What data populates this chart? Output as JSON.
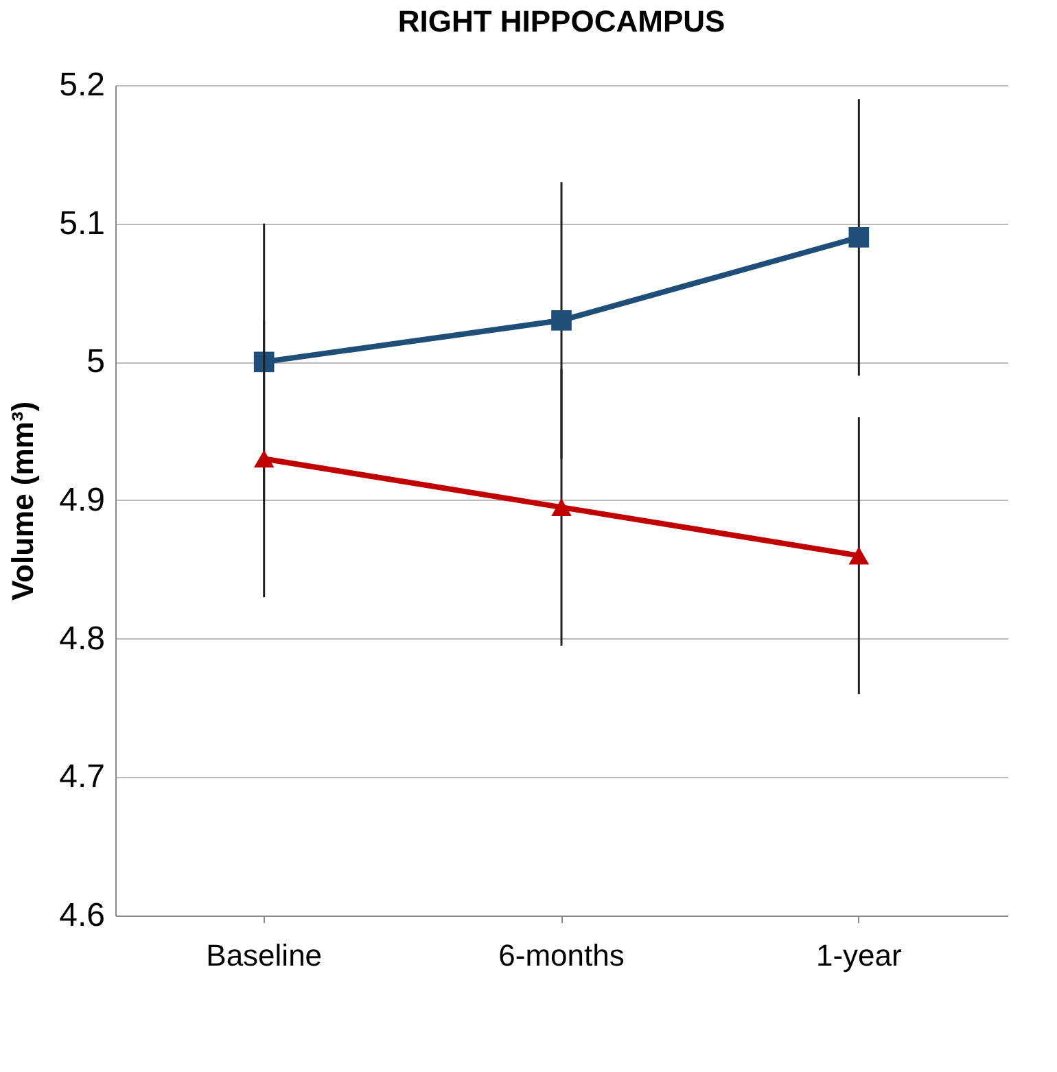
{
  "chart_data": {
    "type": "line",
    "title": "RIGHT HIPPOCAMPUS",
    "ylabel": "Volume (mm³)",
    "categories": [
      "Baseline",
      "6-months",
      "1-year"
    ],
    "series": [
      {
        "color": "#1f4e79",
        "values": [
          5.0,
          5.03,
          5.09
        ],
        "errors": [
          0.1,
          0.1,
          0.1
        ],
        "marker": "square"
      },
      {
        "color": "#c00000",
        "values": [
          4.93,
          4.895,
          4.86
        ],
        "errors": [
          0.1,
          0.1,
          0.1
        ],
        "marker": "triangle"
      }
    ],
    "ylim": [
      4.6,
      5.2
    ],
    "yticks": [
      4.6,
      4.7,
      4.8,
      4.9,
      5,
      5.1,
      5.2
    ],
    "grid": "y"
  }
}
